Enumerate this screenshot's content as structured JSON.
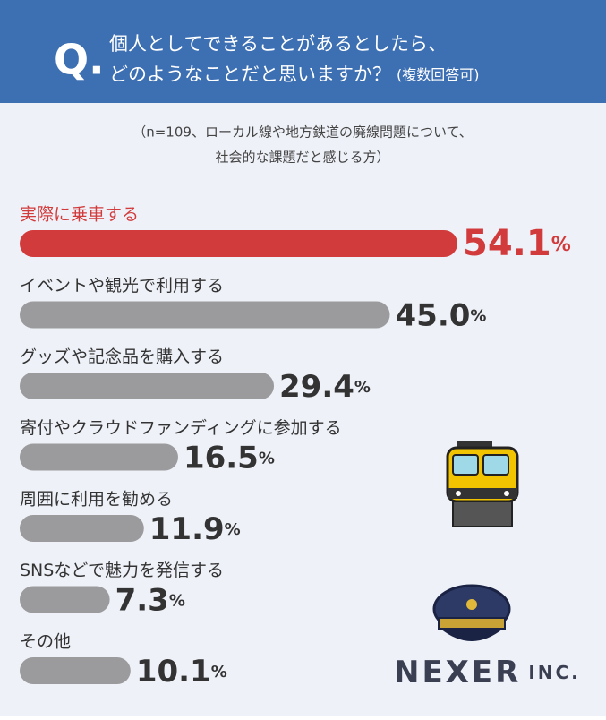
{
  "chart_data": {
    "type": "bar",
    "question_mark": "Q.",
    "title_lines": [
      "個人としてできることがあるとしたら、",
      "どのようなことだと思いますか？"
    ],
    "title_note": "(複数回答可)",
    "subtitle_lines": [
      "（n=109、ローカル線や地方鉄道の廃線問題について、",
      "社会的な課題だと感じる方）"
    ],
    "categories": [
      "実際に乗車する",
      "イベントや観光で利用する",
      "グッズや記念品を購入する",
      "寄付やクラウドファンディングに参加する",
      "周囲に利用を勧める",
      "SNSなどで魅力を発信する",
      "その他"
    ],
    "values": [
      54.1,
      45.0,
      29.4,
      16.5,
      11.9,
      7.3,
      10.1
    ],
    "value_labels": [
      "54.1",
      "45.0",
      "29.4",
      "16.5",
      "11.9",
      "7.3",
      "10.1"
    ],
    "value_unit": "%",
    "highlight_color": "#d23b3b",
    "color": "#9b9b9d",
    "logo": "NEXER",
    "logo_suffix": "INC."
  }
}
